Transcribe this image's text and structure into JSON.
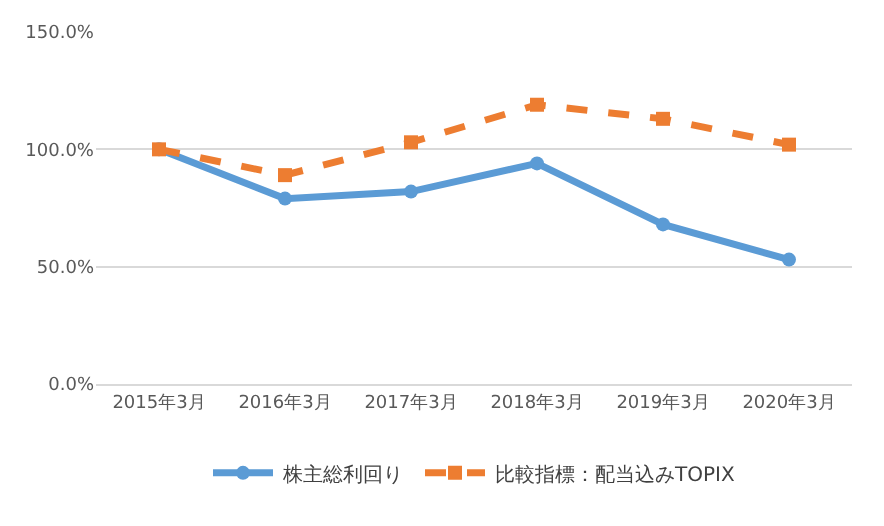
{
  "chart_data": {
    "type": "line",
    "categories": [
      "2015年3月",
      "2016年3月",
      "2017年3月",
      "2018年3月",
      "2019年3月",
      "2020年3月"
    ],
    "series": [
      {
        "name": "株主総利回り",
        "color": "#5b9bd5",
        "values": [
          100,
          79,
          82,
          94,
          68,
          53
        ],
        "marker": "circle",
        "line_style": "solid"
      },
      {
        "name": "比較指標：配当込みTOPIX",
        "color": "#ed7d31",
        "values": [
          100,
          89,
          103,
          119,
          113,
          102
        ],
        "marker": "square",
        "line_style": "dashed"
      }
    ],
    "ylim": [
      0,
      150
    ],
    "yticks": [
      {
        "value": 0,
        "label": "0.0%"
      },
      {
        "value": 50,
        "label": "50.0%"
      },
      {
        "value": 100,
        "label": "100.0%"
      },
      {
        "value": 150,
        "label": "150.0%"
      }
    ],
    "grid": "y",
    "legend": "bottom"
  }
}
